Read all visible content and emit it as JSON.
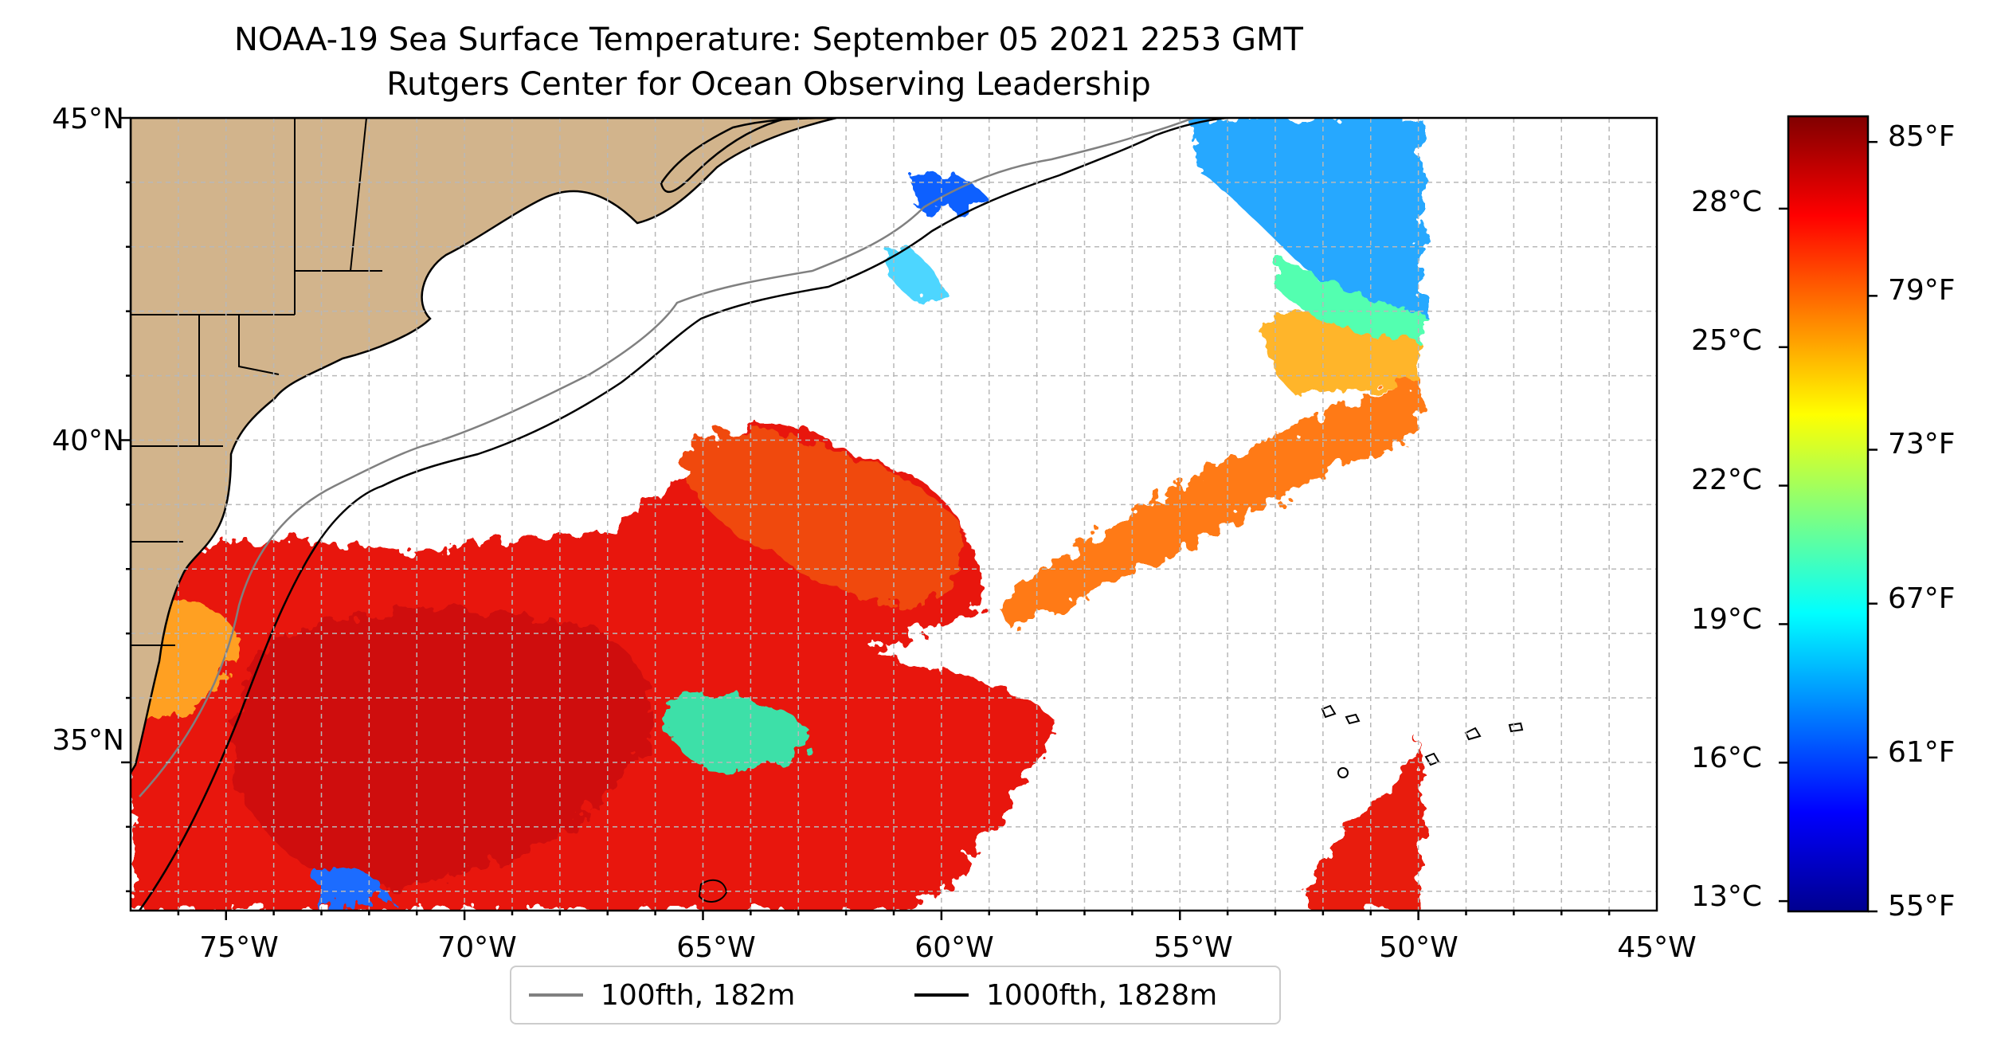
{
  "title": {
    "line1": "NOAA-19 Sea Surface Temperature: September 05 2021 2253 GMT",
    "line2": "Rutgers Center for Ocean Observing Leadership"
  },
  "map": {
    "lon_range": [
      -77,
      -45
    ],
    "lat_range": [
      32.7,
      45
    ],
    "grid_lines": "dashed, gray",
    "x_ticks": [
      "75°W",
      "70°W",
      "65°W",
      "60°W",
      "55°W",
      "50°W",
      "45°W"
    ],
    "y_ticks": [
      "45°N",
      "40°N",
      "35°N"
    ],
    "land_color": "#d2b48c",
    "no_data_color": "#ffffff"
  },
  "colorbar": {
    "colormap": "jet",
    "range_f": [
      55,
      86
    ],
    "celsius_ticks": [
      "28°C",
      "25°C",
      "22°C",
      "19°C",
      "16°C",
      "13°C"
    ],
    "fahrenheit_ticks": [
      "85°F",
      "79°F",
      "73°F",
      "67°F",
      "61°F",
      "55°F"
    ]
  },
  "legend": {
    "placement": "bottom-center",
    "items": [
      {
        "label": "100fth, 182m",
        "color": "#808080"
      },
      {
        "label": "1000fth, 1828m",
        "color": "#000000"
      }
    ]
  }
}
